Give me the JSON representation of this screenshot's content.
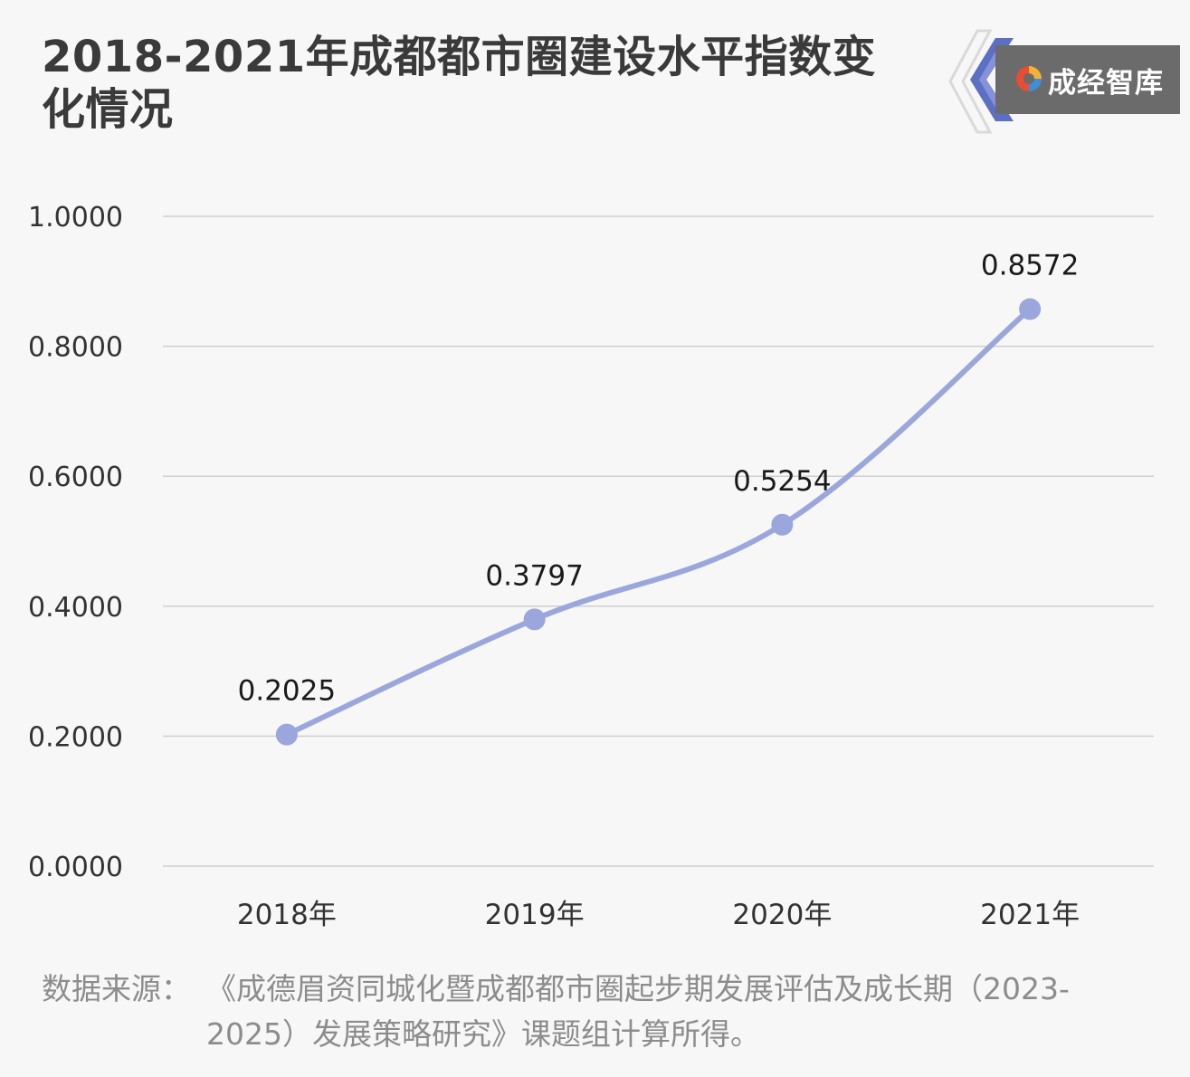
{
  "header": {
    "title": "2018-2021年成都都市圈建设水平指数变化情况"
  },
  "brand": {
    "name": "成经智库",
    "accent": "#5b6fc4"
  },
  "footer": {
    "source_label": "数据来源：",
    "source_text": "《成德眉资同城化暨成都都市圈起步期发展评估及成长期（2023-2025）发展策略研究》课题组计算所得。"
  },
  "chart_data": {
    "type": "line",
    "categories": [
      "2018年",
      "2019年",
      "2020年",
      "2021年"
    ],
    "series": [
      {
        "values": [
          0.2025,
          0.3797,
          0.5254,
          0.8572
        ],
        "color": "#9ba6dd"
      }
    ],
    "data_labels": [
      "0.2025",
      "0.3797",
      "0.5254",
      "0.8572"
    ],
    "y_ticks": [
      "0.0000",
      "0.2000",
      "0.4000",
      "0.6000",
      "0.8000",
      "1.0000"
    ],
    "ylim": [
      0,
      1
    ],
    "grid": true,
    "smooth": true,
    "xlabel": "",
    "ylabel": ""
  }
}
